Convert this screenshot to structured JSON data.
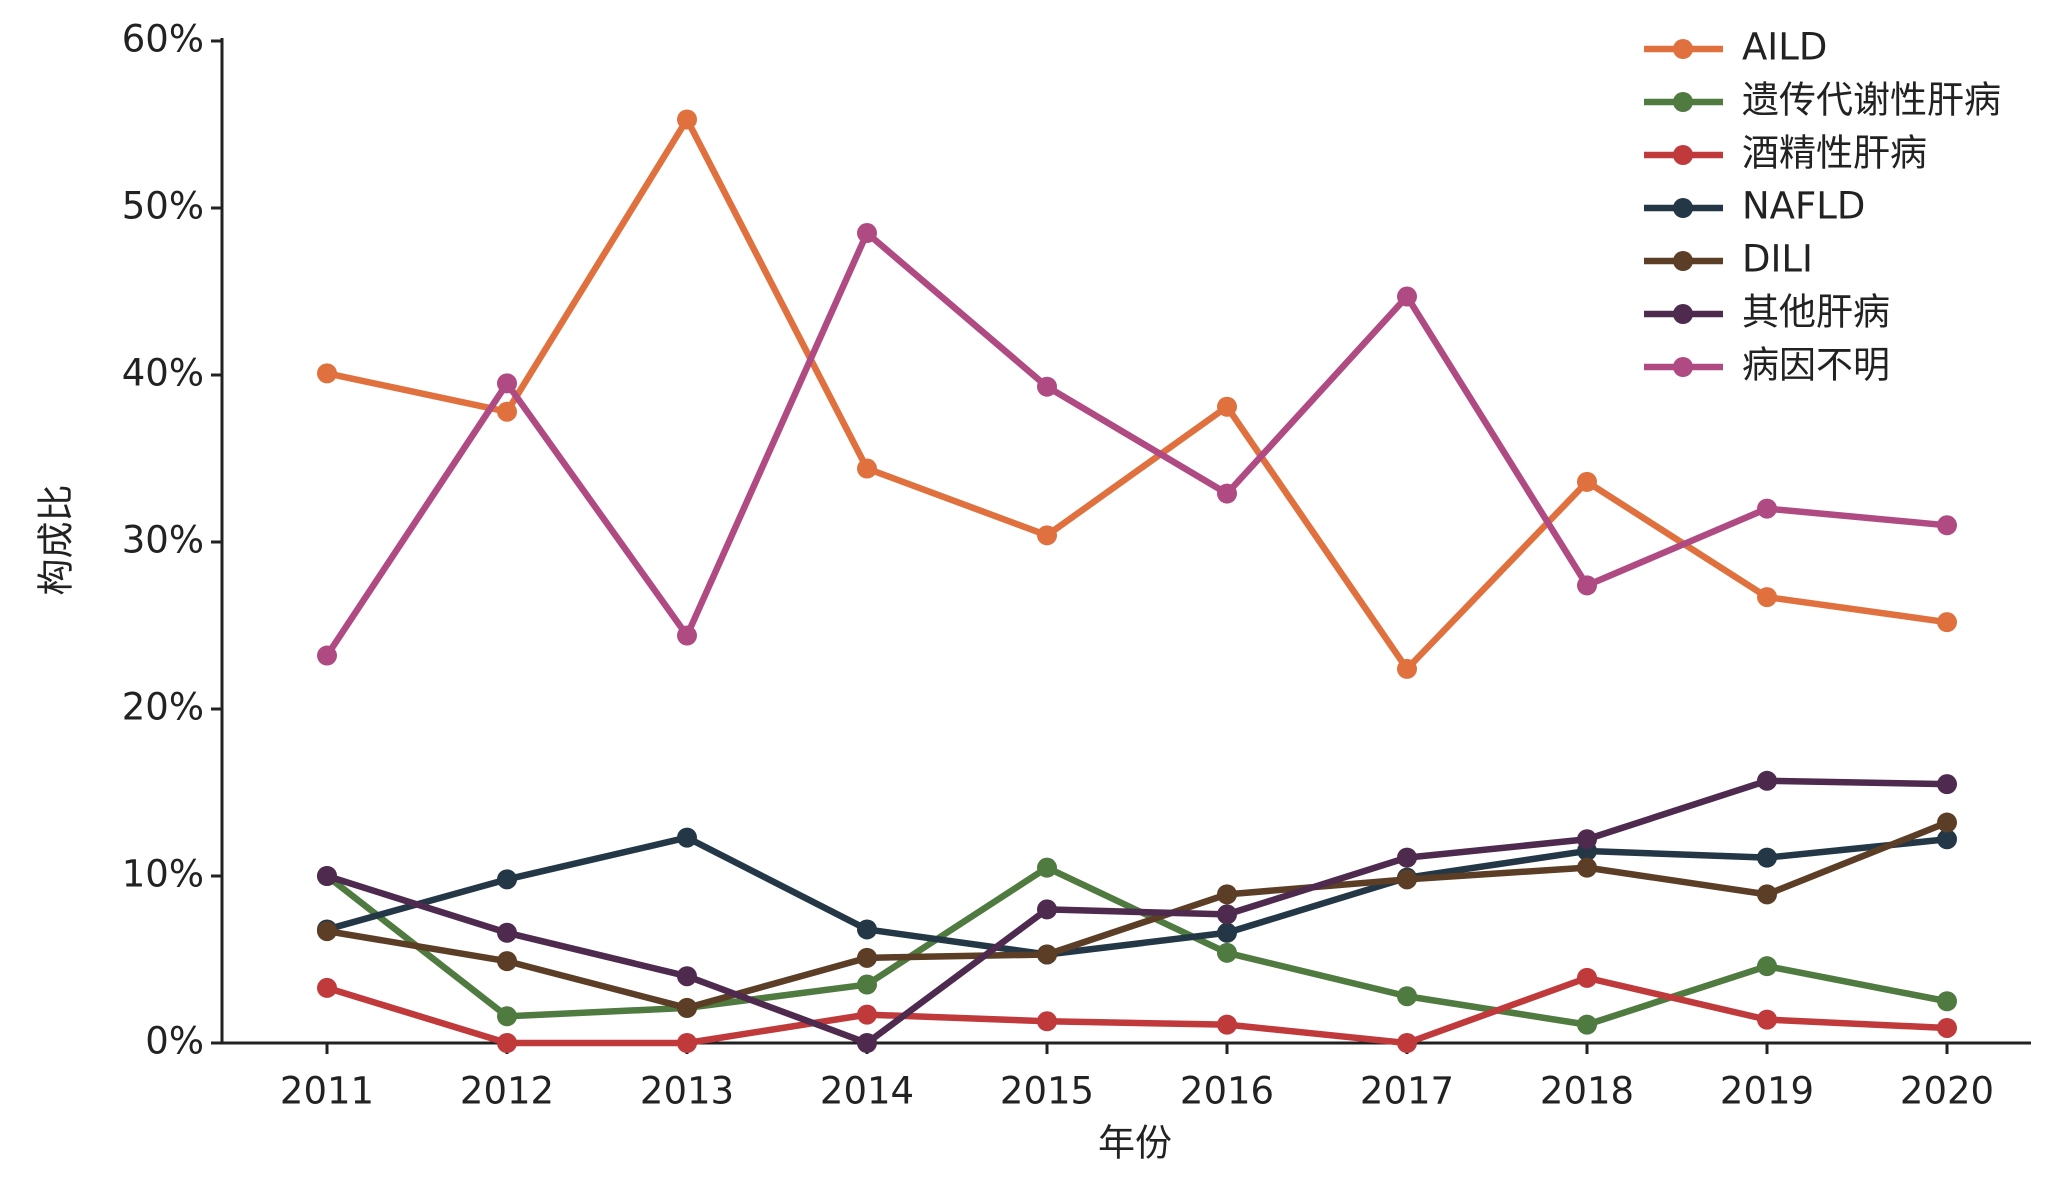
{
  "chart_data": {
    "type": "line",
    "x_label": "年份",
    "y_label": "构成比",
    "categories": [
      "2011",
      "2012",
      "2013",
      "2014",
      "2015",
      "2016",
      "2017",
      "2018",
      "2019",
      "2020"
    ],
    "ylim": [
      0,
      60
    ],
    "yticks": [
      {
        "value": 0,
        "label": "0%"
      },
      {
        "value": 10,
        "label": "10%"
      },
      {
        "value": 20,
        "label": "20%"
      },
      {
        "value": 30,
        "label": "30%"
      },
      {
        "value": 40,
        "label": "40%"
      },
      {
        "value": 50,
        "label": "50%"
      },
      {
        "value": 60,
        "label": "60%"
      }
    ],
    "grid": false,
    "legend": "upper right",
    "series": [
      {
        "name": "AILD",
        "color": "#e0713f",
        "values": [
          40.1,
          37.8,
          55.3,
          34.4,
          30.4,
          38.1,
          22.4,
          33.6,
          26.7,
          25.2
        ]
      },
      {
        "name": "遗传代谢性肝病",
        "color": "#4f7a40",
        "values": [
          10.0,
          1.6,
          2.1,
          3.5,
          10.5,
          5.4,
          2.8,
          1.1,
          4.6,
          2.5
        ]
      },
      {
        "name": "酒精性肝病",
        "color": "#c0393b",
        "values": [
          3.3,
          0,
          0,
          1.7,
          1.3,
          1.1,
          0,
          3.9,
          1.4,
          0.9
        ]
      },
      {
        "name": "NAFLD",
        "color": "#233746",
        "values": [
          6.8,
          9.8,
          12.3,
          6.8,
          5.3,
          6.6,
          9.9,
          11.5,
          11.1,
          12.2
        ]
      },
      {
        "name": "DILI",
        "color": "#5c3d26",
        "values": [
          6.7,
          4.9,
          2.1,
          5.1,
          5.3,
          8.9,
          9.8,
          10.5,
          8.9,
          13.2
        ]
      },
      {
        "name": "其他肝病",
        "color": "#4e2a4f",
        "values": [
          10.0,
          6.6,
          4.0,
          0,
          8.0,
          7.7,
          11.1,
          12.2,
          15.7,
          15.5
        ]
      },
      {
        "name": "病因不明",
        "color": "#b04a82",
        "values": [
          23.2,
          39.5,
          24.4,
          48.5,
          39.3,
          32.9,
          44.7,
          27.4,
          32.0,
          31.0
        ]
      }
    ]
  }
}
